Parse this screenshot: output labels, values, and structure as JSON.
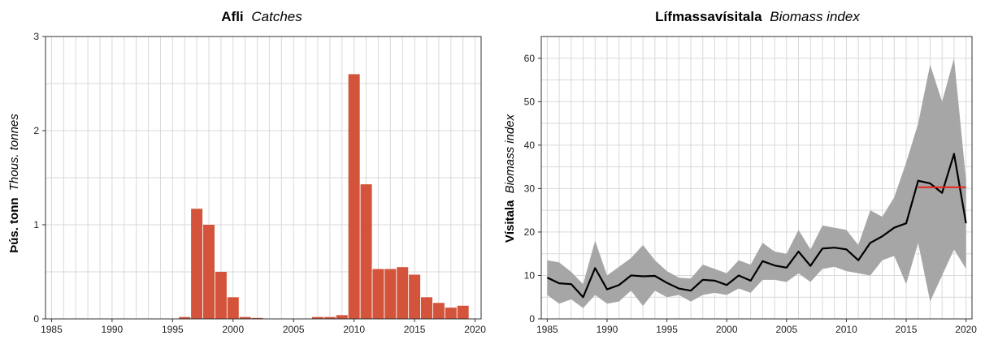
{
  "chart_data": [
    {
      "type": "bar",
      "title": {
        "bold": "Afli",
        "italic": "Catches"
      },
      "ylabel": {
        "bold": "Þús. tonn",
        "italic": "Thous. tonnes"
      },
      "xlabel": "",
      "xlim": [
        1984.5,
        2020.5
      ],
      "ylim": [
        0,
        3
      ],
      "x_ticks": [
        1985,
        1990,
        1995,
        2000,
        2005,
        2010,
        2015,
        2020
      ],
      "y_ticks": [
        0,
        1,
        2,
        3
      ],
      "grid": true,
      "bar_color": "#d4533b",
      "x": [
        1996,
        1997,
        1998,
        1999,
        2000,
        2001,
        2002,
        2007,
        2008,
        2009,
        2010,
        2011,
        2012,
        2013,
        2014,
        2015,
        2016,
        2017,
        2018,
        2019
      ],
      "values": [
        0.02,
        1.17,
        1.0,
        0.5,
        0.23,
        0.02,
        0.01,
        0.02,
        0.02,
        0.04,
        2.6,
        1.43,
        0.53,
        0.53,
        0.55,
        0.47,
        0.23,
        0.17,
        0.12,
        0.14
      ]
    },
    {
      "type": "line",
      "title": {
        "bold": "Lífmassavísitala",
        "italic": "Biomass index"
      },
      "ylabel": {
        "bold": "Vísitala",
        "italic": "Biomass index"
      },
      "xlabel": "",
      "xlim": [
        1984.5,
        2020.5
      ],
      "ylim": [
        0,
        65
      ],
      "x_ticks": [
        1985,
        1990,
        1995,
        2000,
        2005,
        2010,
        2015,
        2020
      ],
      "y_ticks": [
        0,
        10,
        20,
        30,
        40,
        50,
        60
      ],
      "grid": true,
      "band_color": "#a6a6a6",
      "line_color": "#000000",
      "mean_line_color": "#e8201c",
      "x": [
        1985,
        1986,
        1987,
        1988,
        1989,
        1990,
        1991,
        1992,
        1993,
        1994,
        1995,
        1996,
        1997,
        1998,
        1999,
        2000,
        2001,
        2002,
        2003,
        2004,
        2005,
        2006,
        2007,
        2008,
        2009,
        2010,
        2011,
        2012,
        2013,
        2014,
        2015,
        2016,
        2017,
        2018,
        2019,
        2020
      ],
      "series": [
        {
          "values": [
            9.5,
            8.2,
            8.0,
            5.0,
            11.7,
            6.8,
            7.8,
            10.0,
            9.8,
            9.9,
            8.3,
            7.0,
            6.5,
            9.0,
            8.8,
            7.8,
            10.0,
            8.8,
            13.3,
            12.3,
            11.8,
            15.5,
            12.2,
            16.2,
            16.4,
            16.0,
            13.5,
            17.5,
            19.0,
            21.0,
            22.0,
            31.8,
            31.2,
            29.0,
            38.0,
            22.0
          ]
        }
      ],
      "band_upper": [
        13.5,
        13.0,
        10.8,
        8.0,
        18.0,
        10.0,
        12.0,
        14.0,
        17.0,
        13.5,
        11.0,
        9.5,
        9.3,
        12.5,
        11.5,
        10.5,
        13.5,
        12.5,
        17.5,
        15.5,
        15.0,
        20.5,
        16.0,
        21.5,
        21.0,
        20.5,
        17.0,
        25.0,
        23.5,
        28.0,
        36.0,
        45.0,
        58.5,
        50.0,
        60.0,
        32.0
      ],
      "band_lower": [
        5.5,
        3.5,
        4.5,
        2.5,
        5.5,
        3.5,
        4.0,
        6.5,
        3.0,
        6.5,
        5.0,
        5.5,
        4.0,
        5.5,
        6.0,
        5.5,
        7.0,
        6.0,
        9.0,
        9.0,
        8.5,
        10.5,
        8.5,
        11.5,
        12.0,
        11.0,
        10.5,
        10.0,
        13.5,
        14.5,
        8.0,
        17.5,
        4.0,
        10.0,
        16.0,
        11.5
      ],
      "mean_line": {
        "x_start": 2016,
        "x_end": 2020,
        "value": 30.3
      }
    }
  ]
}
